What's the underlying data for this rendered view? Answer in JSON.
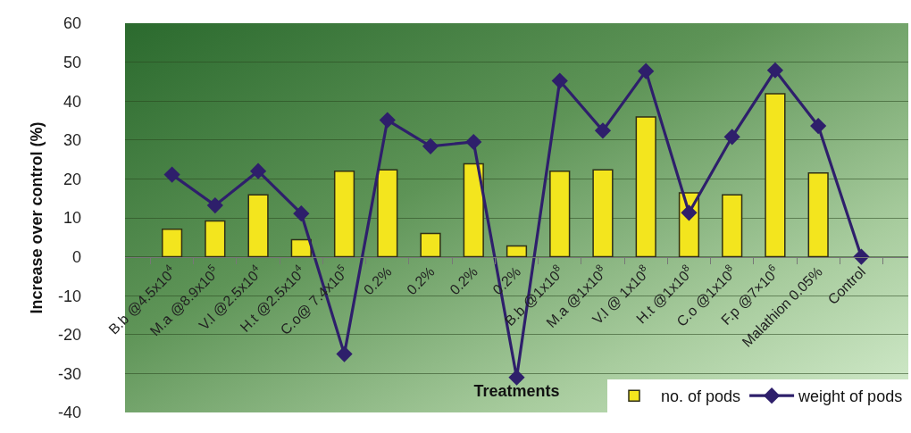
{
  "chart_data": {
    "type": "bar",
    "ylabel": "Increase over control (%)",
    "xlabel": "Treatments",
    "categories": [
      "B.b @4.5x10$^{4}$",
      "M.a @8.9x10$^{5}$",
      "V.l @2.5x10$^{4}$",
      "H.t @2.5x10$^{4}$",
      "C.o@ 7.4x10$^{5}$",
      "0.2%",
      "0.2%",
      "0.2%",
      "0.2%",
      "B.b @1x10$^{8}$",
      "M.a @1x10$^{8}$",
      "V.l @ 1x10$^{8}$",
      "H.t @1x10$^{8}$",
      "C.o @1x10$^{8}$",
      "F.p @7×10$^{6}$",
      "Malathion 0.05%",
      "Control"
    ],
    "series": [
      {
        "name": "no. of pods",
        "color": "#f3e51e",
        "values": [
          7.1,
          9.2,
          15.9,
          4.4,
          22.0,
          22.3,
          6.0,
          23.9,
          2.8,
          22.0,
          22.3,
          35.9,
          16.4,
          15.9,
          41.9,
          21.5,
          null
        ]
      },
      {
        "name": "weight of pods",
        "type": "line",
        "color": "#2e1f6b",
        "marker": "diamond",
        "line_style": "solid",
        "values": [
          21.1,
          13.2,
          22.0,
          11.1,
          -25,
          35.1,
          28.4,
          29.5,
          -31,
          45.2,
          32.4,
          47.7,
          11.3,
          30.8,
          47.9,
          33.6,
          0
        ]
      }
    ],
    "ylim": [
      -40,
      60
    ],
    "yticks": [
      -40,
      -30,
      -20,
      -10,
      0,
      10,
      20,
      30,
      40,
      50,
      60
    ],
    "grid": "y",
    "legend": "bottom right"
  }
}
